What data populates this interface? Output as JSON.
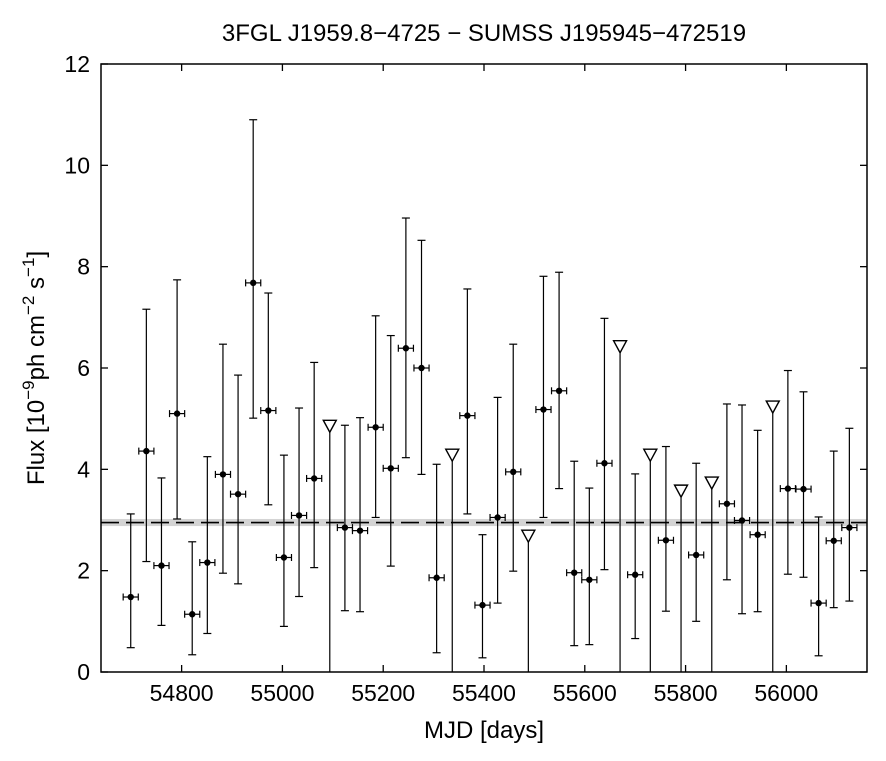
{
  "chart_data": {
    "type": "scatter",
    "title": "3FGL J1959.8−4725 − SUMSS J195945−472519",
    "xlabel": "MJD [days]",
    "ylabel": {
      "pre": "Flux [10",
      "exp1": "−9",
      "mid": "ph cm",
      "exp2": "−2",
      "mid2": " s",
      "exp3": "−1",
      "post": "]"
    },
    "xlim": [
      54640,
      56160
    ],
    "ylim": [
      0,
      12
    ],
    "xticks": [
      54800,
      55000,
      55200,
      55400,
      55600,
      55800,
      56000
    ],
    "yticks": [
      0,
      2,
      4,
      6,
      8,
      10,
      12
    ],
    "grid": false,
    "bin_halfwidth_days": 15,
    "mean_flux": 2.95,
    "mean_flux_band": [
      2.88,
      3.02
    ],
    "detections": [
      {
        "x": 54699,
        "y": 1.48,
        "ylo": 0.48,
        "yhi": 3.12
      },
      {
        "x": 54730,
        "y": 4.36,
        "ylo": 2.18,
        "yhi": 7.16
      },
      {
        "x": 54760,
        "y": 2.1,
        "ylo": 0.92,
        "yhi": 3.83
      },
      {
        "x": 54791,
        "y": 5.1,
        "ylo": 3.02,
        "yhi": 7.74
      },
      {
        "x": 54821,
        "y": 1.14,
        "ylo": 0.34,
        "yhi": 2.57
      },
      {
        "x": 54851,
        "y": 2.16,
        "ylo": 0.76,
        "yhi": 4.25
      },
      {
        "x": 54882,
        "y": 3.9,
        "ylo": 1.95,
        "yhi": 6.47
      },
      {
        "x": 54912,
        "y": 3.51,
        "ylo": 1.74,
        "yhi": 5.86
      },
      {
        "x": 54942,
        "y": 7.68,
        "ylo": 5.01,
        "yhi": 10.9
      },
      {
        "x": 54972,
        "y": 5.16,
        "ylo": 3.3,
        "yhi": 7.48
      },
      {
        "x": 55003,
        "y": 2.26,
        "ylo": 0.9,
        "yhi": 4.28
      },
      {
        "x": 55033,
        "y": 3.09,
        "ylo": 1.49,
        "yhi": 5.21
      },
      {
        "x": 55063,
        "y": 3.82,
        "ylo": 2.06,
        "yhi": 6.11
      },
      {
        "x": 55124,
        "y": 2.85,
        "ylo": 1.21,
        "yhi": 4.87
      },
      {
        "x": 55154,
        "y": 2.79,
        "ylo": 1.19,
        "yhi": 5.02
      },
      {
        "x": 55185,
        "y": 4.83,
        "ylo": 3.05,
        "yhi": 7.03
      },
      {
        "x": 55215,
        "y": 4.02,
        "ylo": 2.09,
        "yhi": 6.64
      },
      {
        "x": 55245,
        "y": 6.39,
        "ylo": 4.23,
        "yhi": 8.96
      },
      {
        "x": 55276,
        "y": 6.0,
        "ylo": 3.9,
        "yhi": 8.52
      },
      {
        "x": 55306,
        "y": 1.86,
        "ylo": 0.38,
        "yhi": 4.1
      },
      {
        "x": 55367,
        "y": 5.06,
        "ylo": 3.12,
        "yhi": 7.56
      },
      {
        "x": 55397,
        "y": 1.32,
        "ylo": 0.28,
        "yhi": 2.71
      },
      {
        "x": 55427,
        "y": 3.05,
        "ylo": 1.36,
        "yhi": 5.42
      },
      {
        "x": 55458,
        "y": 3.95,
        "ylo": 1.99,
        "yhi": 6.47
      },
      {
        "x": 55518,
        "y": 5.18,
        "ylo": 3.05,
        "yhi": 7.81
      },
      {
        "x": 55549,
        "y": 5.55,
        "ylo": 3.62,
        "yhi": 7.89
      },
      {
        "x": 55579,
        "y": 1.96,
        "ylo": 0.52,
        "yhi": 4.16
      },
      {
        "x": 55609,
        "y": 1.82,
        "ylo": 0.54,
        "yhi": 3.63
      },
      {
        "x": 55639,
        "y": 4.12,
        "ylo": 2.02,
        "yhi": 6.98
      },
      {
        "x": 55700,
        "y": 1.92,
        "ylo": 0.66,
        "yhi": 3.91
      },
      {
        "x": 55761,
        "y": 2.6,
        "ylo": 1.2,
        "yhi": 4.45
      },
      {
        "x": 55821,
        "y": 2.31,
        "ylo": 1.0,
        "yhi": 4.12
      },
      {
        "x": 55882,
        "y": 3.32,
        "ylo": 1.82,
        "yhi": 5.29
      },
      {
        "x": 55912,
        "y": 2.99,
        "ylo": 1.15,
        "yhi": 5.27
      },
      {
        "x": 55943,
        "y": 2.71,
        "ylo": 1.19,
        "yhi": 4.77
      },
      {
        "x": 56003,
        "y": 3.62,
        "ylo": 1.93,
        "yhi": 5.95
      },
      {
        "x": 56034,
        "y": 3.61,
        "ylo": 1.87,
        "yhi": 5.53
      },
      {
        "x": 56064,
        "y": 1.36,
        "ylo": 0.32,
        "yhi": 3.06
      },
      {
        "x": 56094,
        "y": 2.59,
        "ylo": 1.27,
        "yhi": 4.36
      },
      {
        "x": 56125,
        "y": 2.85,
        "ylo": 1.4,
        "yhi": 4.81
      }
    ],
    "upper_limits": [
      {
        "x": 55094,
        "y": 4.85
      },
      {
        "x": 55337,
        "y": 4.28
      },
      {
        "x": 55488,
        "y": 2.68
      },
      {
        "x": 55670,
        "y": 6.42
      },
      {
        "x": 55730,
        "y": 4.28
      },
      {
        "x": 55791,
        "y": 3.57
      },
      {
        "x": 55852,
        "y": 3.73
      },
      {
        "x": 55973,
        "y": 5.23
      }
    ],
    "colors": {
      "marker": "#000000",
      "mean_line": "#000000",
      "mean_band": "#d4d4d4"
    }
  }
}
